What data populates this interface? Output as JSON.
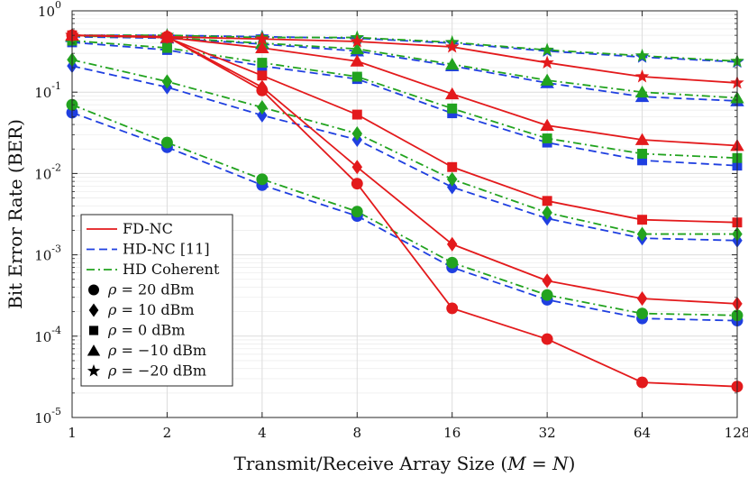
{
  "chart_data": {
    "type": "line",
    "title": "",
    "xlabel": "Transmit/Receive Array Size (M = N)",
    "xlabel_prefix": "Transmit/Receive Array Size (",
    "xlabel_var1": "M",
    "xlabel_eq": " = ",
    "xlabel_var2": "N",
    "xlabel_suffix": ")",
    "ylabel": "Bit Error Rate (BER)",
    "x_scale": "log2",
    "y_scale": "log10",
    "x": [
      1,
      2,
      4,
      8,
      16,
      32,
      64,
      128
    ],
    "x_tick_labels": [
      "1",
      "2",
      "4",
      "8",
      "16",
      "32",
      "64",
      "128"
    ],
    "ylim": [
      1e-05,
      1
    ],
    "y_tick_labels": [
      {
        "base": "10",
        "exp": "0",
        "value": 1
      },
      {
        "base": "10",
        "exp": "-1",
        "value": 0.1
      },
      {
        "base": "10",
        "exp": "-2",
        "value": 0.01
      },
      {
        "base": "10",
        "exp": "-3",
        "value": 0.001
      },
      {
        "base": "10",
        "exp": "-4",
        "value": 0.0001
      },
      {
        "base": "10",
        "exp": "-5",
        "value": 1e-05
      }
    ],
    "grid": true,
    "minor_grid": true,
    "legend_position": "bottom-left",
    "legend": {
      "schemes": [
        {
          "key": "fd",
          "label": "FD-NC",
          "color": "#e31a1c",
          "dash": "solid"
        },
        {
          "key": "hd",
          "label": "HD-NC [11]",
          "color": "#1f3fe0",
          "dash": "dashed"
        },
        {
          "key": "hc",
          "label": "HD Coherent",
          "color": "#22a31f",
          "dash": "dashdot"
        }
      ],
      "markers": [
        {
          "marker": "circle",
          "label": "ρ = 20 dBm",
          "rho": "ρ",
          "rest": " = 20 dBm"
        },
        {
          "marker": "diamond",
          "label": "ρ = 10 dBm",
          "rho": "ρ",
          "rest": " = 10 dBm"
        },
        {
          "marker": "square",
          "label": "ρ = 0 dBm",
          "rho": "ρ",
          "rest": " = 0 dBm"
        },
        {
          "marker": "triangle",
          "label": "ρ = −10 dBm",
          "rho": "ρ",
          "rest": " = −10 dBm"
        },
        {
          "marker": "star",
          "label": "ρ = −20 dBm",
          "rho": "ρ",
          "rest": " = −20 dBm"
        }
      ]
    },
    "series": [
      {
        "name": "FD-NC ρ = 20 dBm",
        "scheme": "fd",
        "marker": "circle",
        "values": [
          0.5,
          0.48,
          0.105,
          0.0075,
          0.00022,
          9.2e-05,
          2.7e-05,
          2.4e-05
        ]
      },
      {
        "name": "FD-NC ρ = 10 dBm",
        "scheme": "fd",
        "marker": "diamond",
        "values": [
          0.5,
          0.48,
          0.115,
          0.012,
          0.00135,
          0.00048,
          0.00029,
          0.00025
        ]
      },
      {
        "name": "FD-NC ρ = 0 dBm",
        "scheme": "fd",
        "marker": "square",
        "values": [
          0.5,
          0.47,
          0.16,
          0.053,
          0.012,
          0.0046,
          0.0027,
          0.0025
        ]
      },
      {
        "name": "FD-NC ρ = −10 dBm",
        "scheme": "fd",
        "marker": "triangle",
        "values": [
          0.5,
          0.47,
          0.35,
          0.24,
          0.095,
          0.039,
          0.026,
          0.022
        ]
      },
      {
        "name": "FD-NC ρ = −20 dBm",
        "scheme": "fd",
        "marker": "star",
        "values": [
          0.5,
          0.48,
          0.45,
          0.42,
          0.36,
          0.23,
          0.155,
          0.13
        ]
      },
      {
        "name": "HD-NC [11] ρ = 20 dBm",
        "scheme": "hd",
        "marker": "circle",
        "values": [
          0.056,
          0.021,
          0.0072,
          0.003,
          0.0007,
          0.00028,
          0.000165,
          0.000155
        ]
      },
      {
        "name": "HD-NC [11] ρ = 10 dBm",
        "scheme": "hd",
        "marker": "diamond",
        "values": [
          0.21,
          0.115,
          0.052,
          0.026,
          0.0068,
          0.0028,
          0.0016,
          0.0015
        ]
      },
      {
        "name": "HD-NC [11] ρ = 0 dBm",
        "scheme": "hd",
        "marker": "square",
        "values": [
          0.41,
          0.33,
          0.21,
          0.145,
          0.055,
          0.024,
          0.0145,
          0.0125
        ]
      },
      {
        "name": "HD-NC [11] ρ = −10 dBm",
        "scheme": "hd",
        "marker": "triangle",
        "values": [
          0.48,
          0.46,
          0.39,
          0.32,
          0.21,
          0.13,
          0.088,
          0.078
        ]
      },
      {
        "name": "HD-NC [11] ρ = −20 dBm",
        "scheme": "hd",
        "marker": "star",
        "values": [
          0.5,
          0.5,
          0.48,
          0.46,
          0.4,
          0.32,
          0.27,
          0.235
        ]
      },
      {
        "name": "HD Coherent ρ = 20 dBm",
        "scheme": "hc",
        "marker": "circle",
        "values": [
          0.07,
          0.024,
          0.0085,
          0.0034,
          0.0008,
          0.00032,
          0.00019,
          0.00018
        ]
      },
      {
        "name": "HD Coherent ρ = 10 dBm",
        "scheme": "hc",
        "marker": "diamond",
        "values": [
          0.25,
          0.135,
          0.065,
          0.031,
          0.0085,
          0.0033,
          0.0018,
          0.0018
        ]
      },
      {
        "name": "HD Coherent ρ = 0 dBm",
        "scheme": "hc",
        "marker": "square",
        "values": [
          0.43,
          0.35,
          0.23,
          0.155,
          0.063,
          0.027,
          0.0175,
          0.0155
        ]
      },
      {
        "name": "HD Coherent ρ = −10 dBm",
        "scheme": "hc",
        "marker": "triangle",
        "values": [
          0.49,
          0.47,
          0.4,
          0.34,
          0.22,
          0.14,
          0.1,
          0.085
        ]
      },
      {
        "name": "HD Coherent ρ = −20 dBm",
        "scheme": "hc",
        "marker": "star",
        "values": [
          0.5,
          0.5,
          0.47,
          0.47,
          0.41,
          0.33,
          0.28,
          0.24
        ]
      }
    ]
  }
}
